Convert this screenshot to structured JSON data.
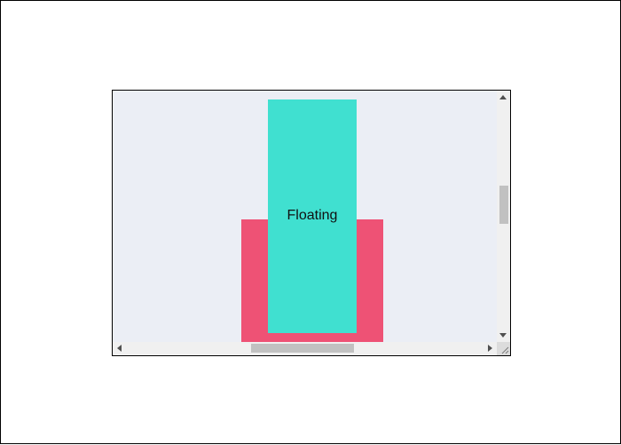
{
  "viewport": {
    "background_color": "#ebeef5"
  },
  "content": {
    "red_block_color": "#ee5275",
    "floating_block_color": "#40e0d0",
    "floating_label": "Floating"
  },
  "scrollbars": {
    "vertical_position": 0.41,
    "horizontal_position": 0.5
  },
  "icons": {
    "scroll_up": "triangle-up-icon",
    "scroll_down": "triangle-down-icon",
    "scroll_left": "triangle-left-icon",
    "scroll_right": "triangle-right-icon",
    "resize": "resize-grip-icon"
  }
}
